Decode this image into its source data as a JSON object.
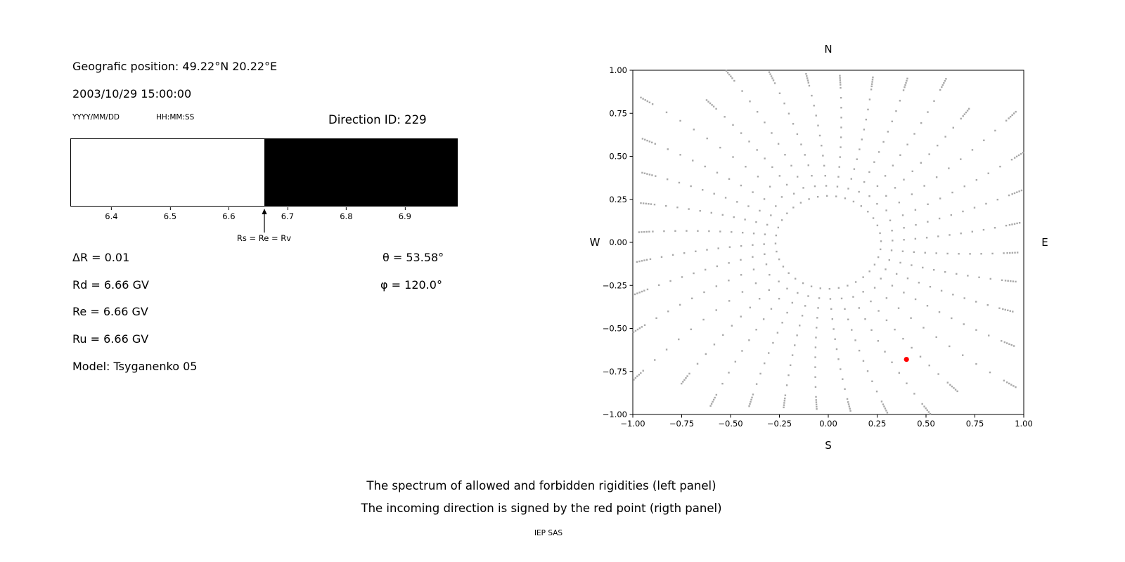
{
  "colors": {
    "background": "#ffffff",
    "text": "#000000",
    "axis": "#000000",
    "allowed_region": "#ffffff",
    "forbidden_region": "#000000",
    "dot": "#9a9a9a",
    "red_point": "#ff0000"
  },
  "info": {
    "position": "Geografic position: 49.22°N 20.22°E",
    "datetime": "2003/10/29 15:00:00",
    "date_format_label": "YYYY/MM/DD",
    "time_format_label": "HH:MM:SS",
    "direction_id": "Direction ID: 229"
  },
  "parameters": {
    "delta_r": "ΔR = 0.01",
    "rd": "Rd = 6.66 GV",
    "re": "Re = 6.66 GV",
    "ru": "Ru = 6.66 GV",
    "model": "Model: Tsyganenko 05",
    "theta": "θ = 53.58°",
    "phi": "φ = 120.0°"
  },
  "caption": {
    "line1": "The spectrum of allowed and forbidden rigidities (left panel)",
    "line2": "The incoming direction is signed by the red point (rigth panel)",
    "credit": "IEP SAS"
  },
  "chart_data": [
    {
      "type": "bar",
      "xlim": [
        6.33,
        6.99
      ],
      "xticks": [
        6.4,
        6.5,
        6.6,
        6.7,
        6.8,
        6.9
      ],
      "regions": [
        {
          "name": "allowed",
          "from": 6.33,
          "to": 6.66,
          "color": "#ffffff"
        },
        {
          "name": "forbidden",
          "from": 6.66,
          "to": 6.99,
          "color": "#000000"
        }
      ],
      "annotation": {
        "x": 6.66,
        "label": "Rs = Re = Rv"
      }
    },
    {
      "type": "scatter",
      "xlim": [
        -1.0,
        1.0
      ],
      "ylim": [
        -1.0,
        1.0
      ],
      "xticks": [
        -1.0,
        -0.75,
        -0.5,
        -0.25,
        0.0,
        0.25,
        0.5,
        0.75,
        1.0
      ],
      "yticks": [
        -1.0,
        -0.75,
        -0.5,
        -0.25,
        0.0,
        0.25,
        0.5,
        0.75,
        1.0
      ],
      "grid": false,
      "compass": {
        "top": "N",
        "bottom": "S",
        "left": "W",
        "right": "E"
      },
      "spokes": {
        "count": 36,
        "points_uniform": 12,
        "points_tip": 5,
        "r_inner": 0.27,
        "r_outer_max": 1.45,
        "curl": -0.15,
        "marker_size": 2.4,
        "color": "#9a9a9a"
      },
      "red_point": {
        "x": 0.4,
        "y": -0.68,
        "color": "#ff0000",
        "radius": 3.6
      }
    }
  ]
}
